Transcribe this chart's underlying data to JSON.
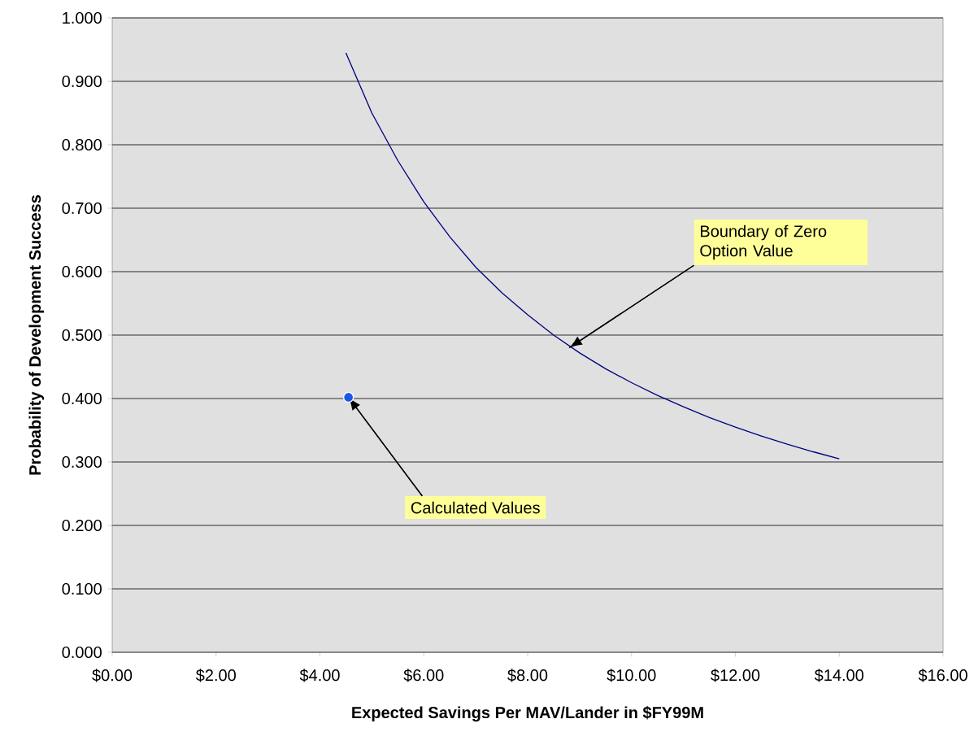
{
  "chart_data": {
    "type": "line",
    "xlabel": "Expected Savings Per MAV/Lander in $FY99M",
    "ylabel": "Probability of Development Success",
    "xlim": [
      0,
      16
    ],
    "ylim": [
      0,
      1
    ],
    "xticks": [
      {
        "value": 0,
        "label": "$0.00"
      },
      {
        "value": 2,
        "label": "$2.00"
      },
      {
        "value": 4,
        "label": "$4.00"
      },
      {
        "value": 6,
        "label": "$6.00"
      },
      {
        "value": 8,
        "label": "$8.00"
      },
      {
        "value": 10,
        "label": "$10.00"
      },
      {
        "value": 12,
        "label": "$12.00"
      },
      {
        "value": 14,
        "label": "$14.00"
      },
      {
        "value": 16,
        "label": "$16.00"
      }
    ],
    "yticks": [
      {
        "value": 0,
        "label": "0.000"
      },
      {
        "value": 0.1,
        "label": "0.100"
      },
      {
        "value": 0.2,
        "label": "0.200"
      },
      {
        "value": 0.3,
        "label": "0.300"
      },
      {
        "value": 0.4,
        "label": "0.400"
      },
      {
        "value": 0.5,
        "label": "0.500"
      },
      {
        "value": 0.6,
        "label": "0.600"
      },
      {
        "value": 0.7,
        "label": "0.700"
      },
      {
        "value": 0.8,
        "label": "0.800"
      },
      {
        "value": 0.9,
        "label": "0.900"
      },
      {
        "value": 1,
        "label": "1.000"
      }
    ],
    "grid": "y",
    "series": [
      {
        "color": "#000080",
        "marker": "none",
        "x": [
          4.5,
          5,
          5.5,
          6,
          6.5,
          7,
          7.5,
          8,
          8.5,
          9,
          9.5,
          10,
          10.5,
          11,
          11.5,
          12,
          12.5,
          13,
          13.5,
          14
        ],
        "values": [
          0.945,
          0.85,
          0.775,
          0.71,
          0.655,
          0.607,
          0.567,
          0.532,
          0.5,
          0.472,
          0.447,
          0.425,
          0.405,
          0.387,
          0.37,
          0.355,
          0.341,
          0.328,
          0.316,
          0.305
        ]
      },
      {
        "type": "scatter",
        "color": "#1a56e8",
        "marker": "circle",
        "x": [
          4.55
        ],
        "values": [
          0.402
        ]
      }
    ],
    "annotations": [
      {
        "text": "Boundary of Zero Option Value",
        "x": 8.8,
        "y": 0.48
      },
      {
        "text": "Calculated Values",
        "x": 4.55,
        "y": 0.402
      }
    ]
  }
}
